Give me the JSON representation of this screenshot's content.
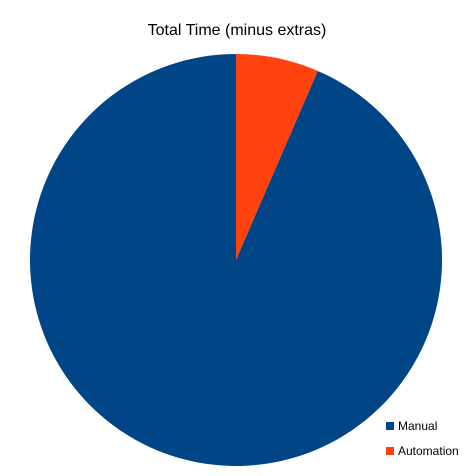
{
  "chart_data": {
    "type": "pie",
    "title": "Total Time (minus extras)",
    "categories": [
      "Manual",
      "Automation"
    ],
    "values": [
      93.5,
      6.5
    ],
    "colors": [
      "#004586",
      "#ff420e"
    ],
    "legend_position": "bottom-right"
  }
}
